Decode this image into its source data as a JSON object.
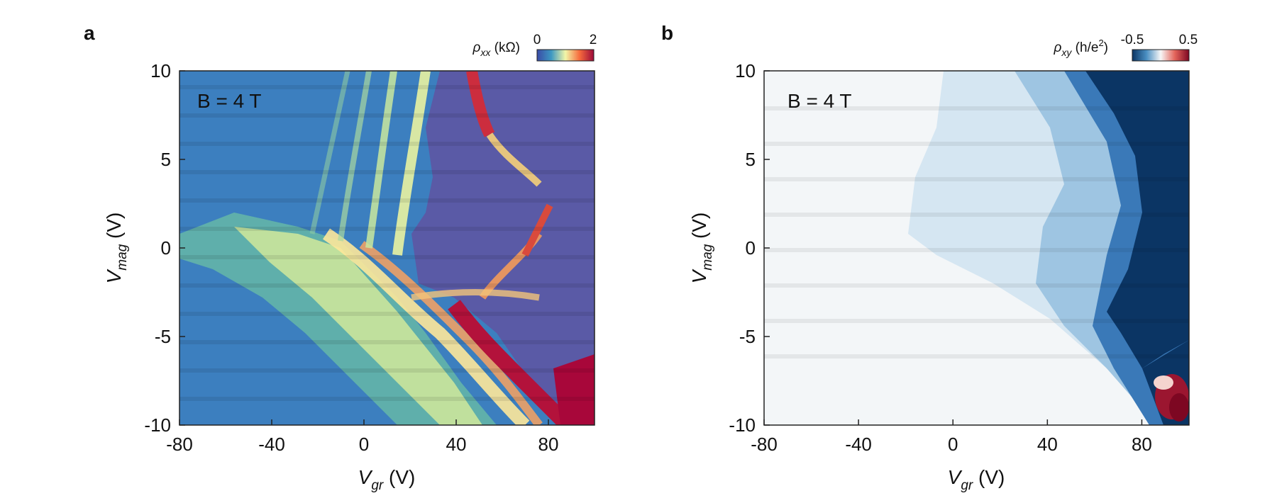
{
  "chart_data": [
    {
      "type": "heatmap",
      "panel_label": "a",
      "annotation": "B = 4 T",
      "xlabel": {
        "symbol": "V",
        "sub": "gr",
        "unit": " (V)"
      },
      "ylabel": {
        "symbol": "V",
        "sub": "mag",
        "unit": " (V)"
      },
      "xlim": [
        -80,
        100
      ],
      "ylim": [
        -10,
        10
      ],
      "x_ticks": [
        "-80",
        "-40",
        "0",
        "40",
        "80"
      ],
      "y_ticks": [
        "10",
        "5",
        "0",
        "-5",
        "-10"
      ],
      "colorbar": {
        "symbol": "ρ",
        "sub": "xx",
        "unit": " (kΩ)",
        "min_label": "0",
        "max_label": "2",
        "range": [
          0,
          2
        ],
        "colormap": "spectral_r"
      }
    },
    {
      "type": "heatmap",
      "panel_label": "b",
      "annotation": "B = 4 T",
      "xlabel": {
        "symbol": "V",
        "sub": "gr",
        "unit": " (V)"
      },
      "ylabel": {
        "symbol": "V",
        "sub": "mag",
        "unit": " (V)"
      },
      "xlim": [
        -80,
        100
      ],
      "ylim": [
        -10,
        10
      ],
      "x_ticks": [
        "-80",
        "-40",
        "0",
        "40",
        "80"
      ],
      "y_ticks": [
        "10",
        "5",
        "0",
        "-5",
        "-10"
      ],
      "colorbar": {
        "symbol": "ρ",
        "sub": "xy",
        "unit": " (h/e",
        "unit_sup": "2",
        "unit_close": ")",
        "min_label": "-0.5",
        "max_label": "0.5",
        "range": [
          -0.5,
          0.5
        ],
        "colormap": "rdbu_r"
      }
    }
  ]
}
